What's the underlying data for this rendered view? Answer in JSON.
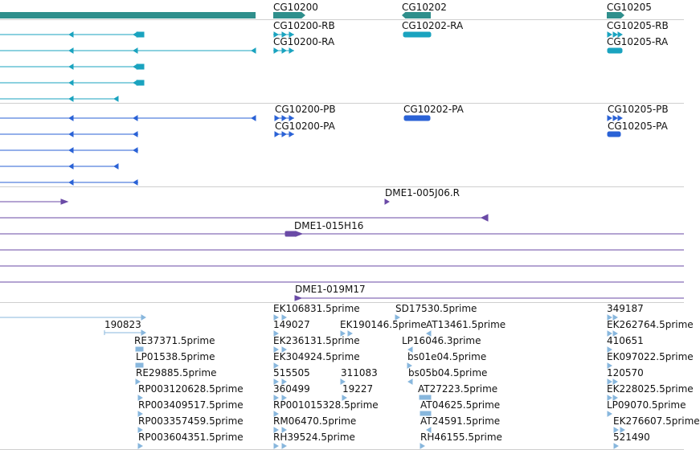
{
  "colors": {
    "gene": "#2f8f8c",
    "transcript_r": "#1aa3bf",
    "protein_p": "#2a62d6",
    "clone": "#6a4aa6",
    "est": "#88b7dd",
    "separator": "#cfcfcf"
  },
  "gene_track": {
    "labels": [
      "CG10200",
      "CG10202",
      "CG10205"
    ]
  },
  "transcript_track": {
    "labels": [
      "CG10200-RB",
      "CG10200-RA",
      "CG10202-RA",
      "CG10205-RB",
      "CG10205-RA"
    ]
  },
  "protein_track": {
    "labels": [
      "CG10200-PB",
      "CG10200-PA",
      "CG10202-PA",
      "CG10205-PB",
      "CG10205-PA"
    ]
  },
  "clone_track": {
    "labels": [
      "DME1-005J06.R",
      "DME1-015H16",
      "DME1-019M17"
    ]
  },
  "est_track": {
    "labels": [
      "EK106831.5prime",
      "SD17530.5prime",
      "349187",
      "190823",
      "149027",
      "EK190146.5prime",
      "AT13461.5prime",
      "EK262764.5prime",
      "RE37371.5prime",
      "EK236131.5prime",
      "LP16046.3prime",
      "410651",
      "LP01538.5prime",
      "EK304924.5prime",
      "bs01e04.5prime",
      "EK097022.5prime",
      "RE29885.5prime",
      "515505",
      "311083",
      "bs05b04.5prime",
      "120570",
      "RP003120628.5prime",
      "360499",
      "19227",
      "AT27223.5prime",
      "EK228025.5prime",
      "RP003409517.5prime",
      "RP001015328.5prime",
      "AT04625.5prime",
      "LP09070.5prime",
      "RP003357459.5prime",
      "RM06470.5prime",
      "AT24591.5prime",
      "EK276607.5prime",
      "RP003604351.5prime",
      "RH39524.5prime",
      "RH46155.5prime",
      "521490"
    ]
  }
}
